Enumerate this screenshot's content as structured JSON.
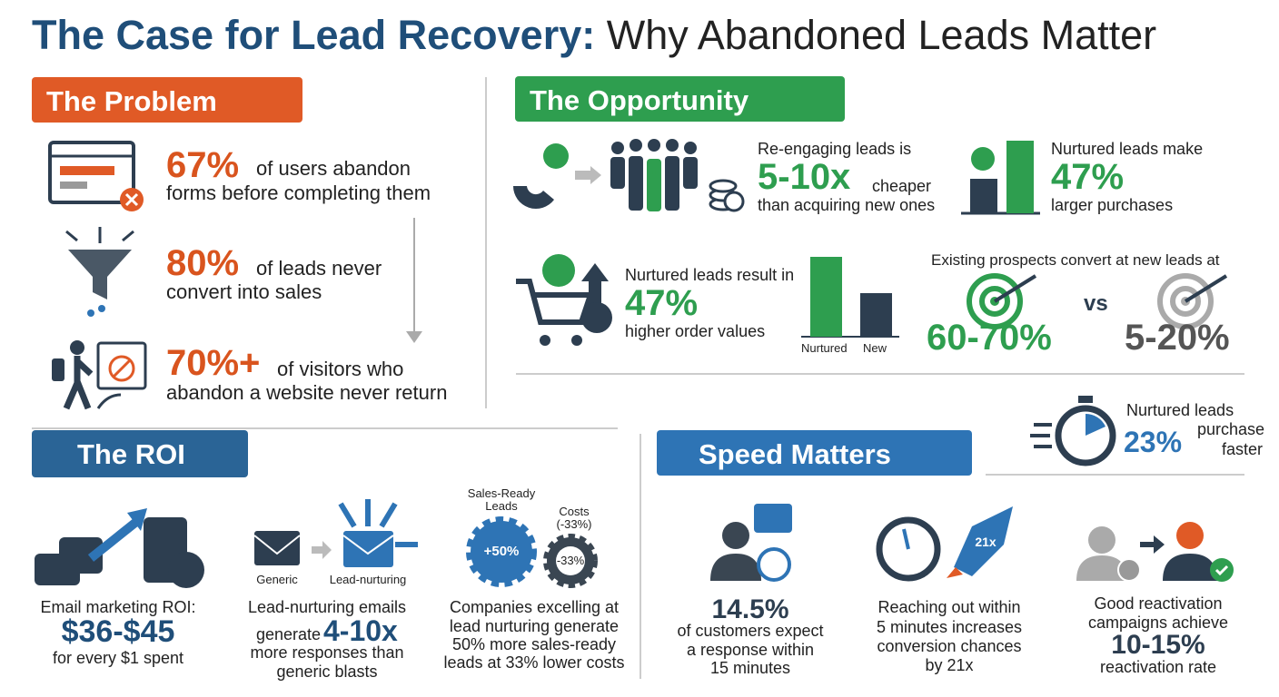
{
  "title": {
    "part1": "The Case for Lead Recovery:",
    "part2": "Why Abandoned Leads Matter"
  },
  "problem": {
    "heading": "The Problem",
    "items": [
      {
        "stat": "67%",
        "line1": "of users abandon",
        "line2": "forms before completing them"
      },
      {
        "stat": "80%",
        "line1": "of leads never",
        "line2": "convert into sales"
      },
      {
        "stat": "70%+",
        "line1": "of visitors who",
        "line2": "abandon a website never return"
      }
    ]
  },
  "opportunity": {
    "heading": "The Opportunity",
    "reengage": {
      "intro": "Re-engaging leads is",
      "stat": "5-10x",
      "tail": "cheaper",
      "line2": "than acquiring new ones"
    },
    "purchases": {
      "intro": "Nurtured leads make",
      "stat": "47%",
      "line2": "larger purchases"
    },
    "order_values": {
      "intro": "Nurtured leads result in",
      "stat": "47%",
      "line2": "higher order values",
      "bar_labels": [
        "Nurtured",
        "New"
      ]
    },
    "convert": {
      "intro": "Existing prospects convert at new leads at",
      "stat1": "60-70%",
      "vs": "vs",
      "stat2": "5-20%"
    },
    "faster": {
      "intro": "Nurtured leads",
      "stat": "23%",
      "word1": "purchase",
      "word2": "faster"
    }
  },
  "roi": {
    "heading": "The ROI",
    "email": {
      "intro": "Email marketing ROI:",
      "stat": "$36-$45",
      "line2": "for every $1 spent"
    },
    "nurturing": {
      "icon_labels": [
        "Generic",
        "Lead-nurturing"
      ],
      "intro": "Lead-nurturing emails",
      "pre": "generate",
      "stat": "4-10x",
      "lines": [
        "more responses than",
        "generic blasts"
      ]
    },
    "companies": {
      "gear_titles": [
        "Sales-Ready Leads",
        "Costs (-33%)"
      ],
      "gear_labels": [
        "+50%",
        "-33%"
      ],
      "lines": [
        "Companies excelling at",
        "lead nurturing generate",
        "50% more sales-ready",
        "leads at 33% lower costs"
      ]
    }
  },
  "speed": {
    "heading": "Speed Matters",
    "expect": {
      "stat": "14.5%",
      "lines": [
        "of customers expect",
        "a response within",
        "15 minutes"
      ]
    },
    "reach": {
      "rocket": "21x",
      "lines": [
        "Reaching out within",
        "5 minutes increases",
        "conversion chances",
        "by 21x"
      ]
    },
    "reactivation": {
      "lines": [
        "Good reactivation",
        "campaigns achieve"
      ],
      "stat": "10-15%",
      "line2": "reactivation rate"
    }
  }
}
